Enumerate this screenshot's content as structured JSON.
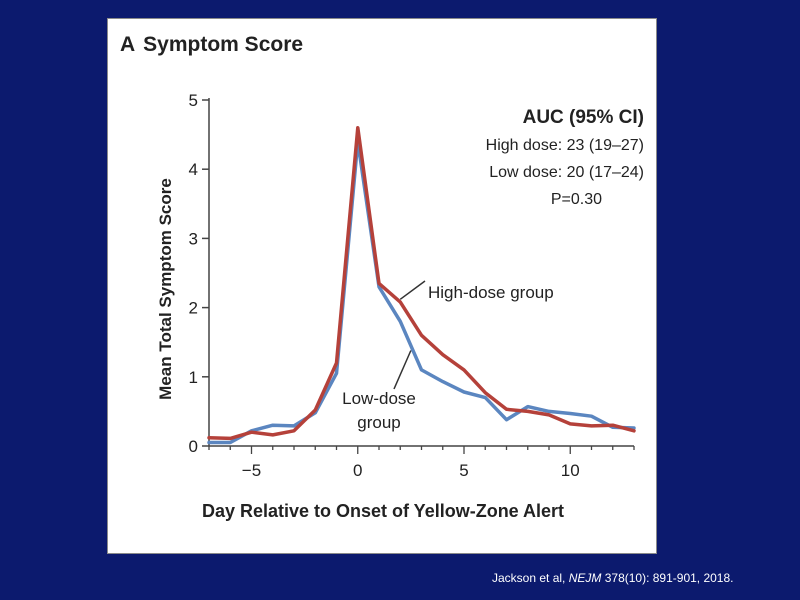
{
  "panel": {
    "letter": "A",
    "title": "Symptom Score"
  },
  "annotations": {
    "auc_heading": "AUC (95% CI)",
    "high_dose": "High dose: 23 (19–27)",
    "low_dose": "Low dose: 20 (17–24)",
    "p_value": "P=0.30",
    "high_group": "High-dose group",
    "low_group_line1": "Low-dose",
    "low_group_line2": "group"
  },
  "citation": {
    "prefix": "Jackson et al, ",
    "journal": "NEJM",
    "suffix": " 378(10): 891-901, 2018."
  },
  "colors": {
    "background": "#0c1a6e",
    "high": "#b5413a",
    "low": "#5b86c0"
  },
  "chart_data": {
    "type": "line",
    "title": "Symptom Score",
    "xlabel": "Day Relative to Onset of Yellow-Zone Alert",
    "ylabel": "Mean Total Symptom Score",
    "xlim": [
      -7,
      13
    ],
    "ylim": [
      0,
      5
    ],
    "xticks": [
      -5,
      0,
      5,
      10
    ],
    "xtick_labels": [
      "−5",
      "0",
      "5",
      "10"
    ],
    "yticks": [
      0,
      1,
      2,
      3,
      4,
      5
    ],
    "series": [
      {
        "name": "High-dose group",
        "color": "#b5413a",
        "x": [
          -7,
          -6,
          -5,
          -4,
          -3,
          -2,
          -1,
          0,
          1,
          2,
          3,
          4,
          5,
          6,
          7,
          8,
          9,
          10,
          11,
          12,
          13
        ],
        "y": [
          0.12,
          0.11,
          0.2,
          0.16,
          0.22,
          0.52,
          1.2,
          4.6,
          2.35,
          2.08,
          1.6,
          1.32,
          1.1,
          0.77,
          0.53,
          0.5,
          0.45,
          0.32,
          0.29,
          0.3,
          0.22
        ]
      },
      {
        "name": "Low-dose group",
        "color": "#5b86c0",
        "x": [
          -7,
          -6,
          -5,
          -4,
          -3,
          -2,
          -1,
          0,
          1,
          2,
          3,
          4,
          5,
          6,
          7,
          8,
          9,
          10,
          11,
          12,
          13
        ],
        "y": [
          0.05,
          0.05,
          0.22,
          0.3,
          0.29,
          0.48,
          1.05,
          4.4,
          2.3,
          1.8,
          1.1,
          0.93,
          0.78,
          0.7,
          0.38,
          0.57,
          0.5,
          0.47,
          0.43,
          0.27,
          0.26
        ]
      }
    ]
  }
}
